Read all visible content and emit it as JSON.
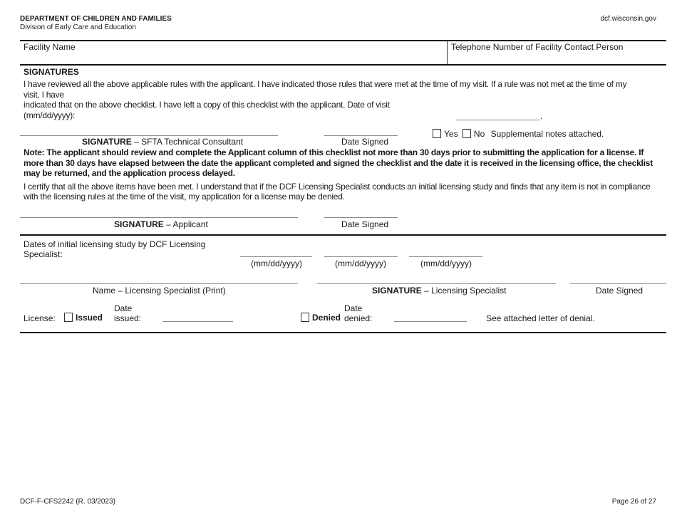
{
  "header": {
    "department": "DEPARTMENT OF CHILDREN AND FAMILIES",
    "division": "Division of Early Care and Education",
    "website": "dcf.wisconsin.gov"
  },
  "facility": {
    "name_label": "Facility Name",
    "phone_label": "Telephone Number of Facility Contact Person"
  },
  "signatures": {
    "heading": "SIGNATURES",
    "review_line1": "I have reviewed all the above applicable rules with the applicant. I have indicated those rules that were met at the time of my visit. If a rule was not met at the time of my",
    "review_line2": "visit, I have",
    "review_line3": "indicated that on the above checklist. I have left a copy of this checklist with the applicant. Date of visit",
    "review_line4": "(mm/dd/yyyy):",
    "visit_period": ".",
    "consultant_sig_bold": "SIGNATURE",
    "consultant_sig_rest": " – SFTA Technical Consultant",
    "date_signed": "Date Signed",
    "yes_label": "Yes",
    "no_label": "No",
    "supplemental_label": "Supplemental notes attached.",
    "note": "Note: The applicant should review and complete the Applicant column of this checklist not more than 30 days prior to submitting the application for a license. If more than 30 days have elapsed between the date the applicant completed and signed the checklist and the date it is received in the licensing office, the checklist may be returned, and the application process delayed.",
    "certify": "I certify that all the above items have been met. I understand that if the DCF Licensing Specialist conducts an initial licensing study and finds that any item is not in compliance with the licensing rules at the time of the visit, my application for a license may be denied.",
    "applicant_sig_bold": "SIGNATURE",
    "applicant_sig_rest": " – Applicant"
  },
  "licensing": {
    "dates_label_line1": "Dates of initial licensing study by DCF Licensing",
    "dates_label_line2": "Specialist:",
    "date_format": "(mm/dd/yyyy)",
    "name_label": "Name – Licensing Specialist  (Print)",
    "specialist_sig_bold": "SIGNATURE",
    "specialist_sig_rest": " – Licensing Specialist",
    "date_signed": "Date Signed",
    "license_label": "License:",
    "issued_label": "Issued",
    "date_word": "Date",
    "issued_word": "issued:",
    "denied_label": "Denied",
    "denied_word": "denied:",
    "denial_note": "See attached letter of denial."
  },
  "footer": {
    "form_id": "DCF-F-CFS2242 (R. 03/2023)",
    "page": "Page 26 of 27"
  }
}
